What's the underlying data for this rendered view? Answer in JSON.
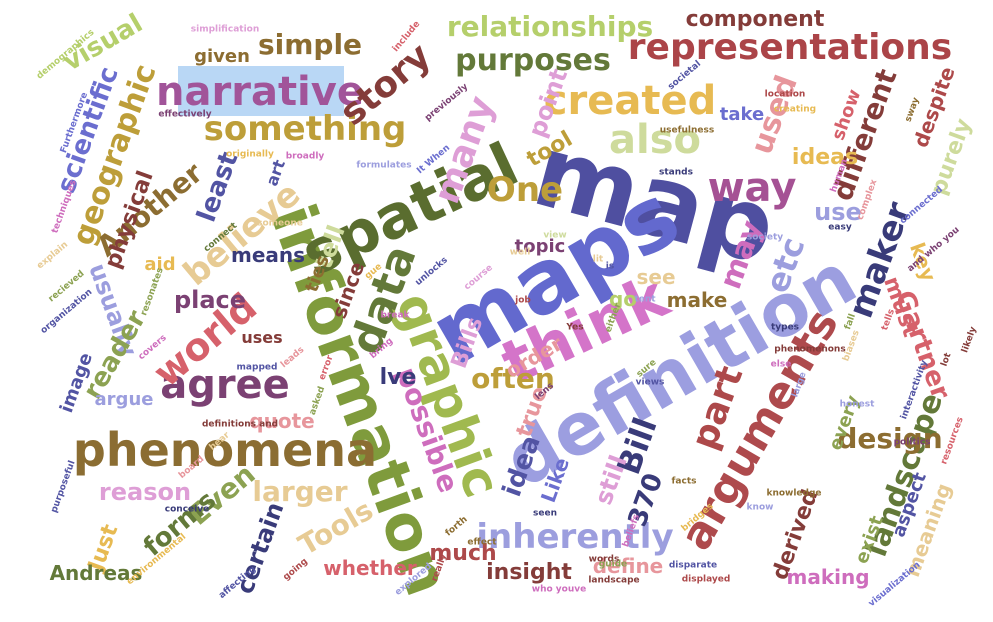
{
  "words": [
    {
      "text": "map",
      "color": "#4f4fa0"
    },
    {
      "text": "maps",
      "color": "#6369ce"
    },
    {
      "text": "definition",
      "color": "#9c9ee0"
    },
    {
      "text": "information",
      "color": "#7f9b3c"
    },
    {
      "text": "spatial",
      "color": "#5a6d2f"
    },
    {
      "text": "think",
      "color": "#d474c9"
    },
    {
      "text": "graphic",
      "color": "#a0b94f"
    },
    {
      "text": "phenomena",
      "color": "#8b6d32"
    },
    {
      "text": "arguments",
      "color": "#ae4a4d"
    },
    {
      "text": "narrative",
      "color": "#a15499"
    },
    {
      "text": "representations",
      "color": "#ab4448"
    },
    {
      "text": "relationships",
      "color": "#b5cf6b"
    },
    {
      "text": "created",
      "color": "#e7ba52"
    },
    {
      "text": "something",
      "color": "#bd9e39"
    },
    {
      "text": "agree",
      "color": "#7b4173"
    },
    {
      "text": "also",
      "color": "#cedb9c"
    },
    {
      "text": "way",
      "color": "#a55194"
    },
    {
      "text": "landscape",
      "color": "#637939"
    },
    {
      "text": "part",
      "color": "#ad494a"
    },
    {
      "text": "data",
      "color": "#637939"
    },
    {
      "text": "world",
      "color": "#d6616b"
    },
    {
      "text": "inherently",
      "color": "#9c9ede"
    },
    {
      "text": "story",
      "color": "#843c39"
    },
    {
      "text": "purposes",
      "color": "#637939"
    },
    {
      "text": "simple",
      "color": "#8c6d31"
    },
    {
      "text": "component",
      "color": "#843c39"
    },
    {
      "text": "believe",
      "color": "#e7cb94"
    },
    {
      "text": "One",
      "color": "#bd9e39"
    },
    {
      "text": "used",
      "color": "#e7969c"
    },
    {
      "text": "many",
      "color": "#de9ed6"
    },
    {
      "text": "different",
      "color": "#843c39"
    },
    {
      "text": "maker",
      "color": "#393b79"
    },
    {
      "text": "geographic",
      "color": "#bd9e39"
    },
    {
      "text": "etc",
      "color": "#9c9ede"
    },
    {
      "text": "may",
      "color": "#ce6dbd"
    },
    {
      "text": "possible",
      "color": "#ce6dbd"
    },
    {
      "text": "idea",
      "color": "#5254a3"
    },
    {
      "text": "Gartner",
      "color": "#d6616b"
    },
    {
      "text": "Bill",
      "color": "#393b79"
    },
    {
      "text": "design",
      "color": "#8c6d31"
    },
    {
      "text": "larger",
      "color": "#e7cb94"
    },
    {
      "text": "reason",
      "color": "#de9ed6"
    },
    {
      "text": "Tools",
      "color": "#e7cb94"
    },
    {
      "text": "scientific",
      "color": "#6b6ecf"
    },
    {
      "text": "Another",
      "color": "#8c6d31"
    },
    {
      "text": "usually",
      "color": "#9c9ede"
    },
    {
      "text": "reader",
      "color": "#8ca252"
    },
    {
      "text": "visual",
      "color": "#b5cf6b"
    },
    {
      "text": "tool",
      "color": "#bd9e39"
    },
    {
      "text": "point",
      "color": "#de9ed6"
    },
    {
      "text": "least",
      "color": "#5254a3"
    },
    {
      "text": "tell",
      "color": "#cedb9c"
    },
    {
      "text": "place",
      "color": "#7b4173"
    },
    {
      "text": "ideas",
      "color": "#e7ba52"
    },
    {
      "text": "show",
      "color": "#d6616b"
    },
    {
      "text": "purely",
      "color": "#cedb9c"
    },
    {
      "text": "despite",
      "color": "#ad494a"
    },
    {
      "text": "take",
      "color": "#6b6ecf"
    },
    {
      "text": "use",
      "color": "#9c9ede"
    },
    {
      "text": "key",
      "color": "#e7ba52"
    },
    {
      "text": "must",
      "color": "#d6616b"
    },
    {
      "text": "often",
      "color": "#bd9e39"
    },
    {
      "text": "lve",
      "color": "#393b79"
    },
    {
      "text": "since",
      "color": "#843c39"
    },
    {
      "text": "ties",
      "color": "#8c6d31"
    },
    {
      "text": "topic",
      "color": "#7b4173"
    },
    {
      "text": "see",
      "color": "#e7cb94"
    },
    {
      "text": "go",
      "color": "#b5cf6b"
    },
    {
      "text": "make",
      "color": "#8c6d31"
    },
    {
      "text": "order",
      "color": "#e7969c"
    },
    {
      "text": "true",
      "color": "#e7969c"
    },
    {
      "text": "Like",
      "color": "#6b6ecf"
    },
    {
      "text": "still",
      "color": "#de9ed6"
    },
    {
      "text": "370",
      "color": "#393b79"
    },
    {
      "text": "Bills",
      "color": "#de9ed6"
    },
    {
      "text": "means",
      "color": "#393b79"
    },
    {
      "text": "art",
      "color": "#5254a3"
    },
    {
      "text": "uses",
      "color": "#843c39"
    },
    {
      "text": "quote",
      "color": "#e7969c"
    },
    {
      "text": "aid",
      "color": "#e7ba52"
    },
    {
      "text": "image",
      "color": "#5254a3"
    },
    {
      "text": "argue",
      "color": "#9c9ede"
    },
    {
      "text": "physical",
      "color": "#843c39"
    },
    {
      "text": "given",
      "color": "#8c6d31"
    },
    {
      "text": "Even",
      "color": "#8ca252"
    },
    {
      "text": "Just",
      "color": "#e7ba52"
    },
    {
      "text": "forms",
      "color": "#637939"
    },
    {
      "text": "certain",
      "color": "#393b79"
    },
    {
      "text": "Andreas",
      "color": "#637939"
    },
    {
      "text": "whether",
      "color": "#d6616b"
    },
    {
      "text": "much",
      "color": "#ad494a"
    },
    {
      "text": "insight",
      "color": "#843c39"
    },
    {
      "text": "define",
      "color": "#e7969c"
    },
    {
      "text": "every",
      "color": "#8ca252"
    },
    {
      "text": "aspect",
      "color": "#5254a3"
    },
    {
      "text": "meaning",
      "color": "#e7cb94"
    },
    {
      "text": "derived",
      "color": "#843c39"
    },
    {
      "text": "exist",
      "color": "#8ca252"
    },
    {
      "text": "making",
      "color": "#ce6dbd"
    },
    {
      "text": "simplification",
      "color": "#de9ed6"
    },
    {
      "text": "demographics",
      "color": "#b5cf6b"
    },
    {
      "text": "include",
      "color": "#d6616b"
    },
    {
      "text": "location",
      "color": "#ad494a"
    },
    {
      "text": "creating",
      "color": "#e7ba52"
    },
    {
      "text": "societal",
      "color": "#5254a3"
    },
    {
      "text": "Furthermore",
      "color": "#6b6ecf"
    },
    {
      "text": "effectively",
      "color": "#7b4173"
    },
    {
      "text": "originally",
      "color": "#e7ba52"
    },
    {
      "text": "broadly",
      "color": "#ce6dbd"
    },
    {
      "text": "usefulness",
      "color": "#8c6d31"
    },
    {
      "text": "stands",
      "color": "#393b79"
    },
    {
      "text": "previously",
      "color": "#7b4173"
    },
    {
      "text": "techniques",
      "color": "#ce6dbd"
    },
    {
      "text": "explain",
      "color": "#e7cb94"
    },
    {
      "text": "connect",
      "color": "#637939"
    },
    {
      "text": "recieved",
      "color": "#8ca252"
    },
    {
      "text": "organization",
      "color": "#5254a3"
    },
    {
      "text": "resonates",
      "color": "#8ca252"
    },
    {
      "text": "unlocks",
      "color": "#5254a3"
    },
    {
      "text": "course",
      "color": "#de9ed6"
    },
    {
      "text": "Yes",
      "color": "#843c39"
    },
    {
      "text": "views",
      "color": "#5254a3"
    },
    {
      "text": "mapped",
      "color": "#5254a3"
    },
    {
      "text": "definitions and",
      "color": "#843c39"
    },
    {
      "text": "covers",
      "color": "#ce6dbd"
    },
    {
      "text": "hear",
      "color": "#e7cb94"
    },
    {
      "text": "board",
      "color": "#e7969c"
    },
    {
      "text": "purposeful",
      "color": "#5254a3"
    },
    {
      "text": "conceive",
      "color": "#393b79"
    },
    {
      "text": "environmental",
      "color": "#e7ba52"
    },
    {
      "text": "affecting",
      "color": "#5254a3"
    },
    {
      "text": "going",
      "color": "#ad494a"
    },
    {
      "text": "explored",
      "color": "#9c9ede"
    },
    {
      "text": "who youve",
      "color": "#ce6dbd"
    },
    {
      "text": "landscape",
      "color": "#843c39"
    },
    {
      "text": "displayed",
      "color": "#ad494a"
    },
    {
      "text": "visualization",
      "color": "#6b6ecf"
    },
    {
      "text": "disparate",
      "color": "#5254a3"
    },
    {
      "text": "effect",
      "color": "#8c6d31"
    },
    {
      "text": "forth",
      "color": "#8c6d31"
    },
    {
      "text": "seen",
      "color": "#393b79"
    },
    {
      "text": "knowledge",
      "color": "#8c6d31"
    },
    {
      "text": "know",
      "color": "#9c9ede"
    },
    {
      "text": "politics",
      "color": "#7b4173"
    },
    {
      "text": "resources",
      "color": "#d6616b"
    },
    {
      "text": "honest",
      "color": "#9c9ede"
    },
    {
      "text": "interactivity",
      "color": "#5254a3"
    },
    {
      "text": "bridges",
      "color": "#e7ba52"
    },
    {
      "text": "beliefs",
      "color": "#ce6dbd"
    },
    {
      "text": "facts",
      "color": "#8c6d31"
    },
    {
      "text": "words",
      "color": "#843c39"
    },
    {
      "text": "phenomenons",
      "color": "#843c39"
    },
    {
      "text": "types",
      "color": "#393b79"
    },
    {
      "text": "easy",
      "color": "#393b79"
    },
    {
      "text": "society",
      "color": "#9c9ede"
    },
    {
      "text": "connected",
      "color": "#6b6ecf"
    },
    {
      "text": "complex",
      "color": "#e7969c"
    },
    {
      "text": "human",
      "color": "#ce6dbd"
    },
    {
      "text": "sway",
      "color": "#8c6d31"
    },
    {
      "text": "It When",
      "color": "#6b6ecf"
    },
    {
      "text": "formulates",
      "color": "#9c9ede"
    },
    {
      "text": "likely",
      "color": "#843c39"
    },
    {
      "text": "lot",
      "color": "#843c39"
    },
    {
      "text": "else",
      "color": "#ce6dbd"
    },
    {
      "text": "either",
      "color": "#8ca252"
    },
    {
      "text": "large",
      "color": "#9c9ede"
    },
    {
      "text": "biases",
      "color": "#e7cb94"
    },
    {
      "text": "error",
      "color": "#d6616b"
    },
    {
      "text": "leads",
      "color": "#e7969c"
    },
    {
      "text": "bring",
      "color": "#ce6dbd"
    },
    {
      "text": "job",
      "color": "#ad494a"
    },
    {
      "text": "lens",
      "color": "#7b4173"
    },
    {
      "text": "is",
      "color": "#5254a3"
    },
    {
      "text": "sure",
      "color": "#8ca252"
    },
    {
      "text": "tent",
      "color": "#9c9ede"
    },
    {
      "text": "fall",
      "color": "#8ca252"
    },
    {
      "text": "tells",
      "color": "#d6616b"
    },
    {
      "text": "and who you",
      "color": "#7b4173"
    },
    {
      "text": "well",
      "color": "#e7cb94"
    },
    {
      "text": "guide",
      "color": "#8ca252"
    },
    {
      "text": "really",
      "color": "#ad494a"
    },
    {
      "text": "someone",
      "color": "#e7cb94"
    },
    {
      "text": "lit",
      "color": "#e7cb94"
    },
    {
      "text": "gue",
      "color": "#e7ba52"
    },
    {
      "text": "break",
      "color": "#ce6dbd"
    },
    {
      "text": "asked",
      "color": "#8ca252"
    },
    {
      "text": "view",
      "color": "#cedb9c"
    },
    {
      "text": "next",
      "color": "#de9ed6"
    }
  ]
}
